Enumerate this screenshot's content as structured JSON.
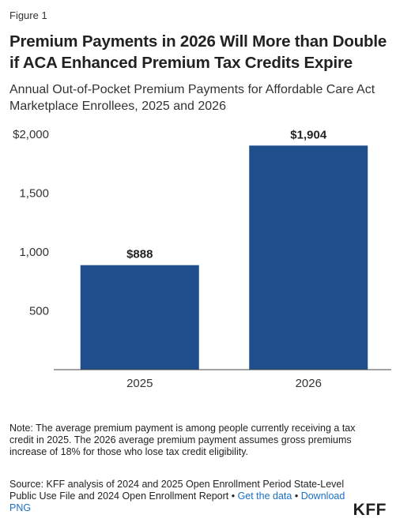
{
  "figure_label": "Figure 1",
  "title": "Premium Payments in 2026 Will More than Double if ACA Enhanced Premium Tax Credits Expire",
  "subtitle": "Annual Out-of-Pocket Premium Payments for Affordable Care Act Marketplace Enrollees, 2025 and 2026",
  "chart_data": {
    "type": "bar",
    "categories": [
      "2025",
      "2026"
    ],
    "values": [
      888,
      1904
    ],
    "data_labels": [
      "$888",
      "$1,904"
    ],
    "ylim": [
      0,
      2000
    ],
    "yticks": [
      500,
      1000,
      1500,
      2000
    ],
    "ytick_labels": [
      "500",
      "1,000",
      "1,500",
      "$2,000"
    ],
    "grid": false,
    "bar_color": "#1f4e8c"
  },
  "note": "Note: The average premium payment is among people currently receiving a tax credit in 2025. The 2026 average premium payment assumes gross premiums increase of 18% for those who lose tax credit eligibility.",
  "source": {
    "text": "Source: KFF analysis of 2024 and 2025 Open Enrollment Period State-Level Public Use File and 2024 Open Enrollment Report",
    "separator": " • ",
    "get_data_label": "Get the data",
    "download_label": "Download PNG"
  },
  "logo": "KFF",
  "colors": {
    "bar": "#1f4e8c",
    "link": "#1a6fc4"
  }
}
